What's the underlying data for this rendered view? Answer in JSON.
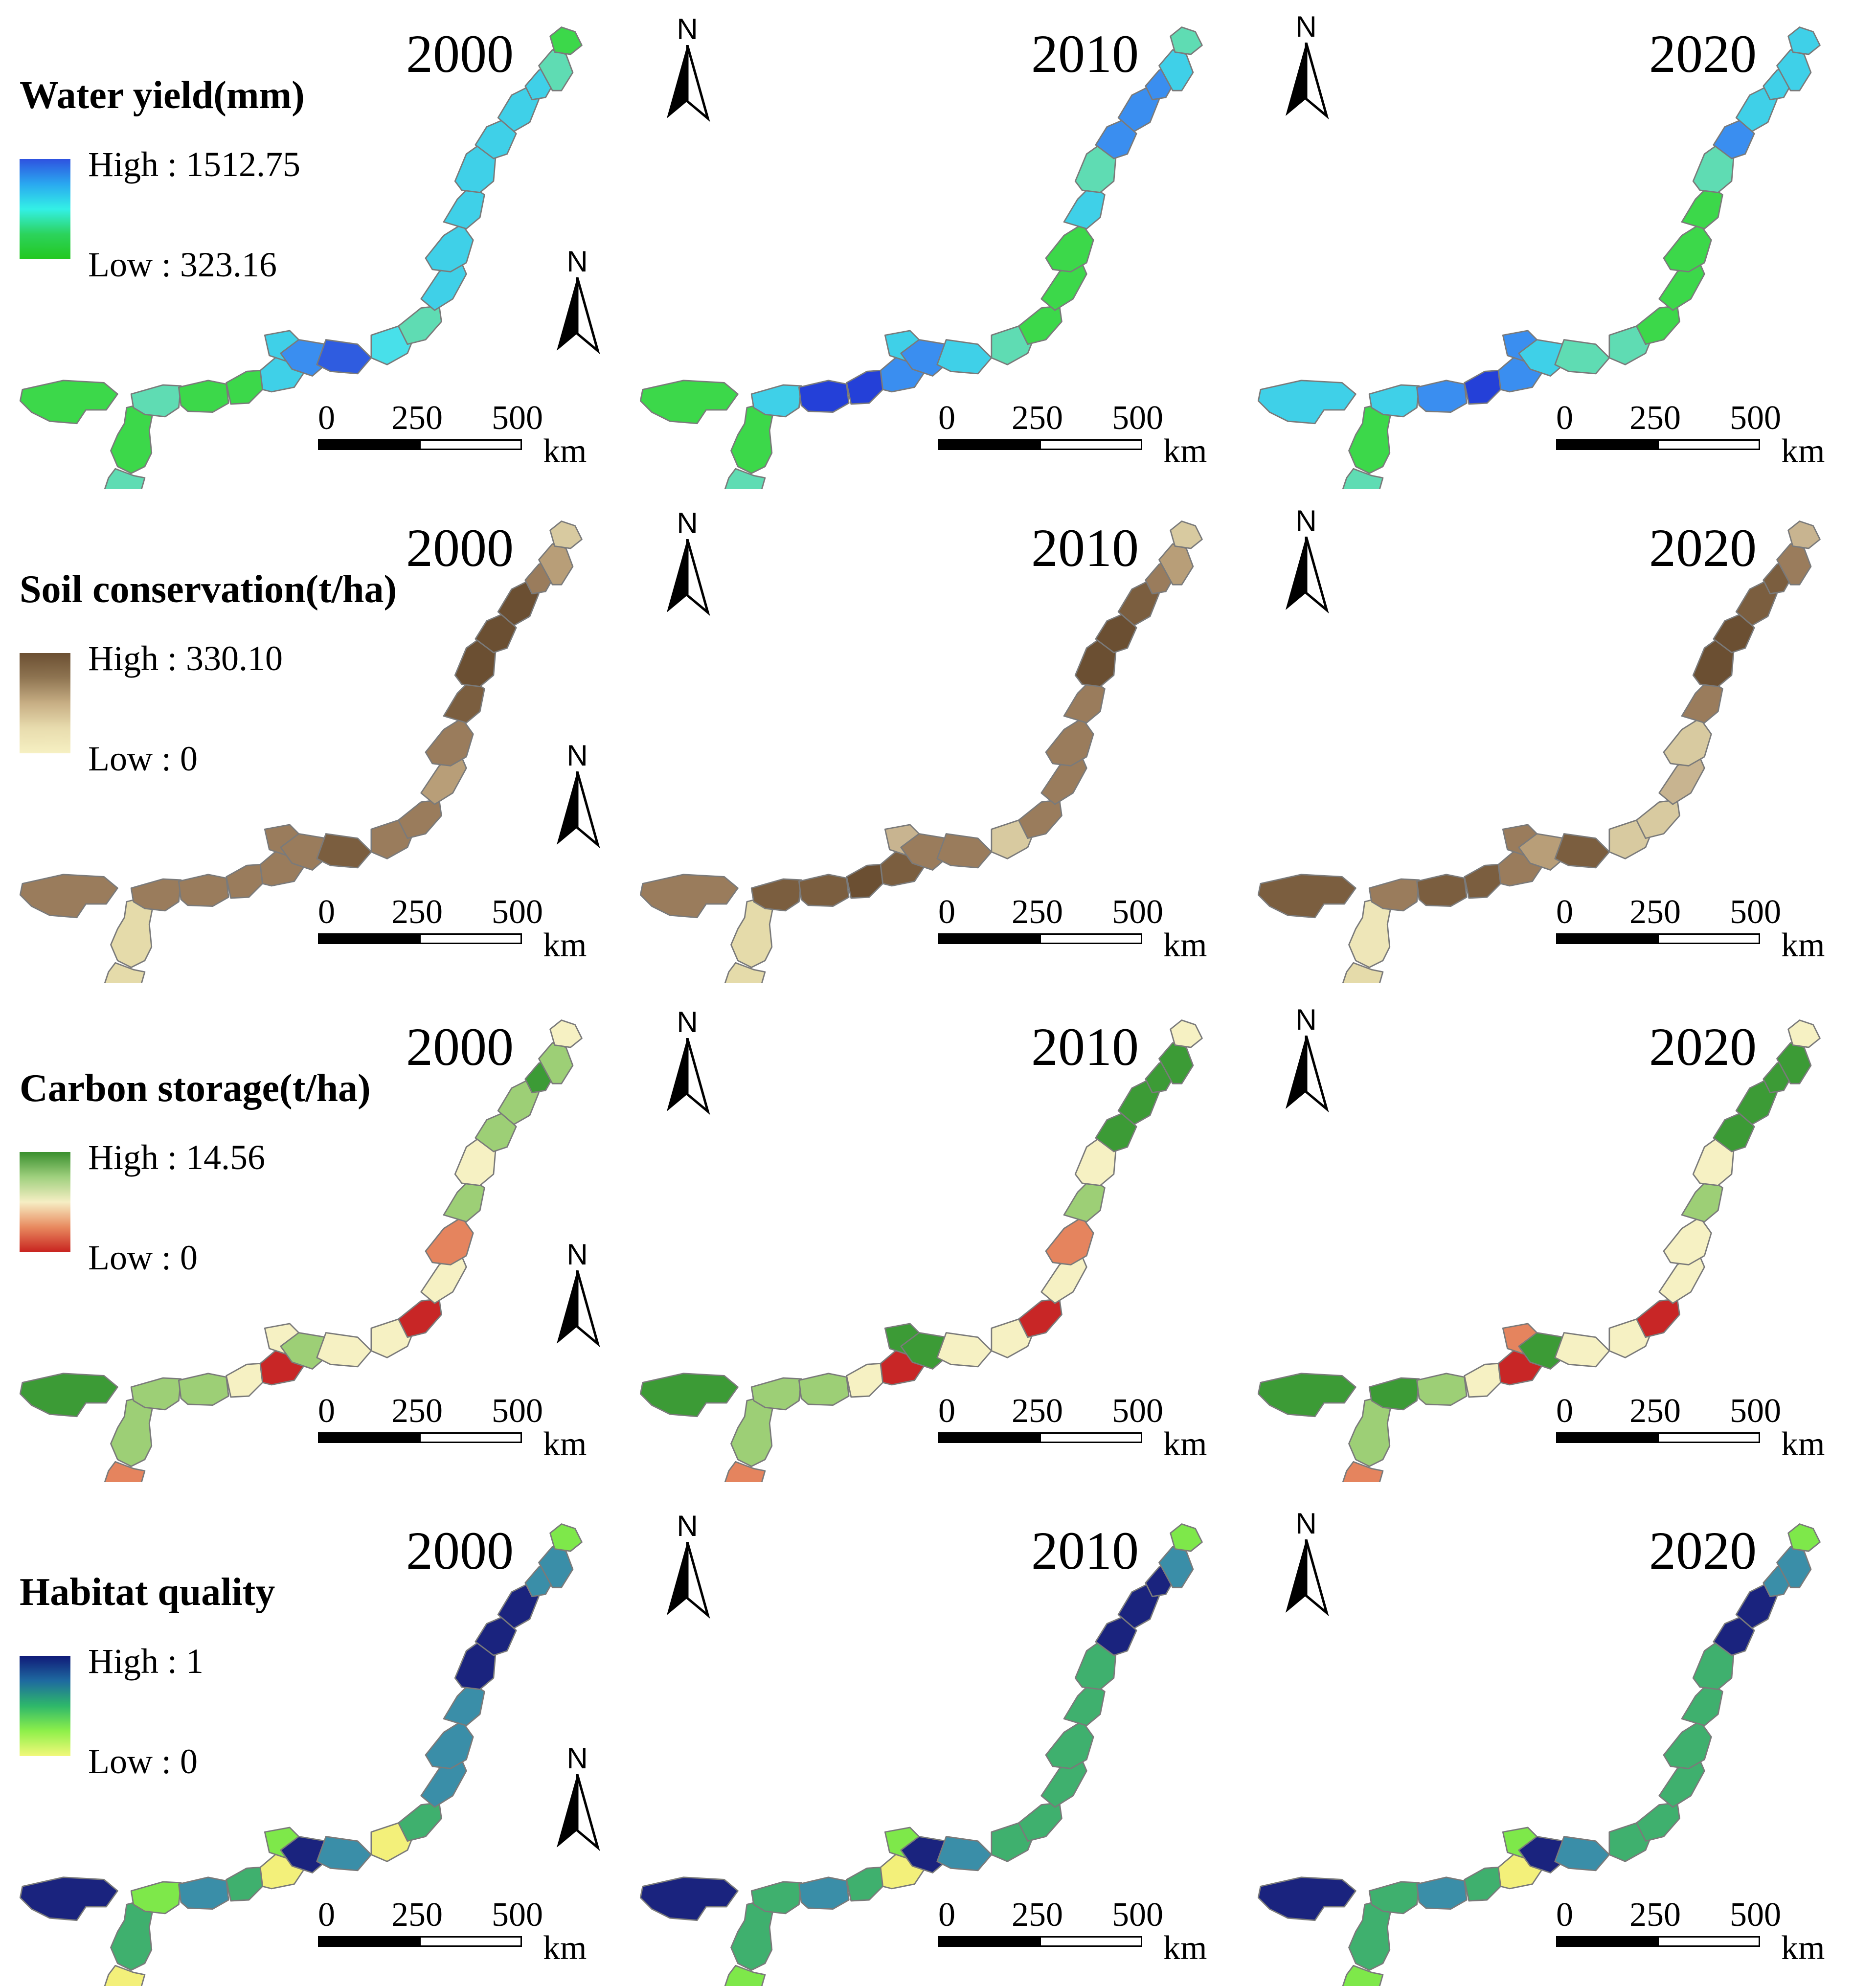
{
  "years": [
    "2000",
    "2010",
    "2020"
  ],
  "north_label": "N",
  "scale": {
    "ticks": [
      "0",
      "250",
      "500"
    ],
    "unit": "km"
  },
  "rows": [
    {
      "title": "Water yield(mm)",
      "high_label": "High : 1512.75",
      "low_label": "Low : 323.16",
      "ramp": [
        "#2e52e0",
        "#2aa8f0",
        "#33f0e6",
        "#2cd35c",
        "#23c81f"
      ],
      "colors": {
        "y2000": [
          "#3cd84a",
          "#3cd84a",
          "#5fdcb3",
          "#5fdcb3",
          "#3cd84a",
          "#3cd84a",
          "#3fd0e8",
          "#3fd0e8",
          "#3a8ef0",
          "#2f5ce0",
          "#48e0ea",
          "#5fdcb3",
          "#3fd0e8",
          "#3fd0e8",
          "#3fd0e8",
          "#3fd0e8",
          "#3fd0e8",
          "#3fd0e8",
          "#3fd0e8",
          "#5fdcb3",
          "#3cd84a"
        ],
        "y2010": [
          "#3cd84a",
          "#3cd84a",
          "#5fdcb3",
          "#3fd0e8",
          "#2440d8",
          "#2440d8",
          "#3a8ef0",
          "#3fd0e8",
          "#3a8ef0",
          "#3fd0e8",
          "#5fdcb3",
          "#3cd84a",
          "#3cd84a",
          "#3cd84a",
          "#3fd0e8",
          "#5fdcb3",
          "#3a8ef0",
          "#3a8ef0",
          "#3a8ef0",
          "#3fd0e8",
          "#5fdcb3"
        ],
        "y2020": [
          "#3fd0e8",
          "#3cd84a",
          "#5fdcb3",
          "#3fd0e8",
          "#3a8ef0",
          "#2440d8",
          "#3a8ef0",
          "#3a8ef0",
          "#3fd0e8",
          "#5fdcb3",
          "#5fdcb3",
          "#3cd84a",
          "#3cd84a",
          "#3cd84a",
          "#3cd84a",
          "#5fdcb3",
          "#3a8ef0",
          "#3fd0e8",
          "#3fd0e8",
          "#3fd0e8",
          "#3fd0e8"
        ]
      }
    },
    {
      "title": "Soil conservation(t/ha)",
      "high_label": "High : 330.10",
      "low_label": "Low : 0",
      "ramp": [
        "#6b4f32",
        "#8f7552",
        "#c7ae84",
        "#e8dcae",
        "#f6f0c2"
      ],
      "colors": {
        "y2000": [
          "#9a7c5c",
          "#e5dbaa",
          "#e5dbaa",
          "#9a7c5c",
          "#9a7c5c",
          "#9a7c5c",
          "#9a7c5c",
          "#9a7c5c",
          "#9a7c5c",
          "#7b5e3f",
          "#9a7c5c",
          "#9a7c5c",
          "#b89e78",
          "#9a7c5c",
          "#7b5e3f",
          "#6b4f32",
          "#6b4f32",
          "#6b4f32",
          "#9a7c5c",
          "#b89e78",
          "#d8caa0"
        ],
        "y2010": [
          "#9a7c5c",
          "#e5dbaa",
          "#e5dbaa",
          "#7b5e3f",
          "#7b5e3f",
          "#6b4f32",
          "#7b5e3f",
          "#c8b490",
          "#9a7c5c",
          "#9a7c5c",
          "#d8caa0",
          "#9a7c5c",
          "#9a7c5c",
          "#9a7c5c",
          "#9a7c5c",
          "#6b4f32",
          "#6b4f32",
          "#7b5e3f",
          "#9a7c5c",
          "#b89e78",
          "#d8caa0"
        ],
        "y2020": [
          "#7b5e3f",
          "#eee6b8",
          "#e5dbaa",
          "#9a7c5c",
          "#7b5e3f",
          "#7b5e3f",
          "#9a7c5c",
          "#9a7c5c",
          "#b89e78",
          "#7b5e3f",
          "#d8caa0",
          "#d8caa0",
          "#c8b490",
          "#d8caa0",
          "#9a7c5c",
          "#6b4f32",
          "#6b4f32",
          "#7b5e3f",
          "#7b5e3f",
          "#9a7c5c",
          "#c8b490"
        ]
      }
    },
    {
      "title": "Carbon storage(t/ha)",
      "high_label": "High : 14.56",
      "low_label": "Low : 0",
      "ramp": [
        "#3a8f2e",
        "#9fd07e",
        "#f6eec4",
        "#e88a5f",
        "#c8231f"
      ],
      "colors": {
        "y2000": [
          "#3c9b36",
          "#9dcf76",
          "#e5845e",
          "#9dcf76",
          "#9dcf76",
          "#f6f1c3",
          "#c82626",
          "#f6f1c3",
          "#9dcf76",
          "#f6f1c3",
          "#f6f1c3",
          "#c82626",
          "#f6f1c3",
          "#e5845e",
          "#9dcf76",
          "#f6f1c3",
          "#9dcf76",
          "#9dcf76",
          "#3c9b36",
          "#9dcf76",
          "#f6f1c3"
        ],
        "y2010": [
          "#3c9b36",
          "#9dcf76",
          "#e5845e",
          "#9dcf76",
          "#9dcf76",
          "#f6f1c3",
          "#c82626",
          "#3c9b36",
          "#3c9b36",
          "#f6f1c3",
          "#f6f1c3",
          "#c82626",
          "#f6f1c3",
          "#e5845e",
          "#9dcf76",
          "#f6f1c3",
          "#3c9b36",
          "#3c9b36",
          "#3c9b36",
          "#3c9b36",
          "#f6f1c3"
        ],
        "y2020": [
          "#3c9b36",
          "#9dcf76",
          "#e5845e",
          "#3c9b36",
          "#9dcf76",
          "#f6f1c3",
          "#c82626",
          "#e5845e",
          "#3c9b36",
          "#f6f1c3",
          "#f6f1c3",
          "#c82626",
          "#f6f1c3",
          "#f6f1c3",
          "#9dcf76",
          "#f6f1c3",
          "#3c9b36",
          "#3c9b36",
          "#3c9b36",
          "#3c9b36",
          "#f6f1c3"
        ]
      }
    },
    {
      "title": "Habitat quality",
      "high_label": "High : 1",
      "low_label": "Low : 0",
      "ramp": [
        "#101a78",
        "#1e6aa0",
        "#2eb86a",
        "#8ef04a",
        "#f2f87a"
      ],
      "colors": {
        "y2000": [
          "#1a237e",
          "#3fb06e",
          "#f3f07a",
          "#7ee84a",
          "#3a8ea8",
          "#3fb06e",
          "#f3f07a",
          "#7ee84a",
          "#1a237e",
          "#3a8ea8",
          "#f3f07a",
          "#3fb06e",
          "#3a8ea8",
          "#3a8ea8",
          "#3a8ea8",
          "#1a237e",
          "#1a237e",
          "#1a237e",
          "#3a8ea8",
          "#3a8ea8",
          "#7ee84a"
        ],
        "y2010": [
          "#1a237e",
          "#3fb06e",
          "#7ee84a",
          "#3fb06e",
          "#3a8ea8",
          "#3fb06e",
          "#f3f07a",
          "#7ee84a",
          "#1a237e",
          "#3a8ea8",
          "#3fb06e",
          "#3fb06e",
          "#3fb06e",
          "#3fb06e",
          "#3fb06e",
          "#3fb06e",
          "#1a237e",
          "#1a237e",
          "#1a237e",
          "#3a8ea8",
          "#7ee84a"
        ],
        "y2020": [
          "#1a237e",
          "#3fb06e",
          "#7ee84a",
          "#3fb06e",
          "#3a8ea8",
          "#3fb06e",
          "#f3f07a",
          "#7ee84a",
          "#1a237e",
          "#3a8ea8",
          "#3fb06e",
          "#3fb06e",
          "#3fb06e",
          "#3fb06e",
          "#3fb06e",
          "#3fb06e",
          "#1a237e",
          "#1a237e",
          "#3a8ea8",
          "#3a8ea8",
          "#7ee84a"
        ]
      }
    }
  ]
}
